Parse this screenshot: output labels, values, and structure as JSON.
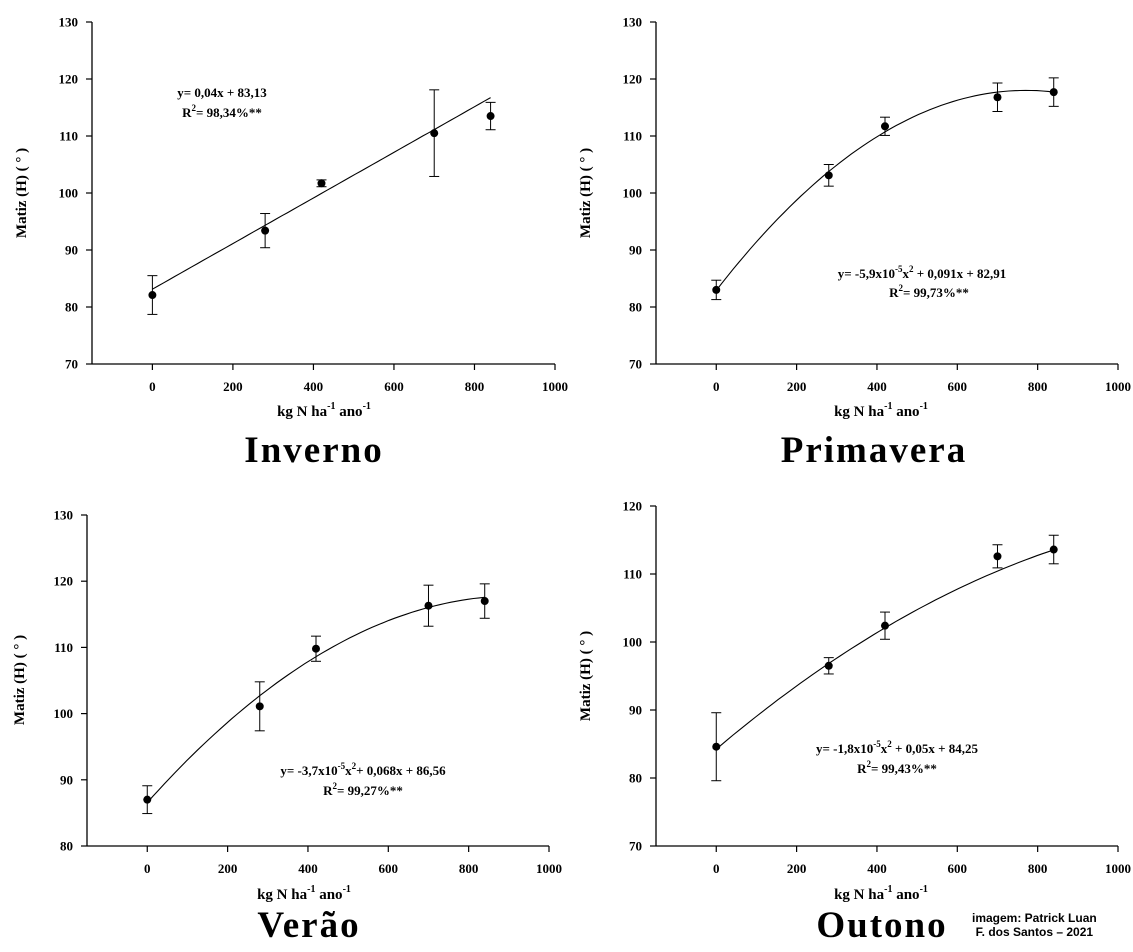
{
  "chart_data": [
    {
      "type": "scatter",
      "title": "Inverno",
      "xlabel": "kg N ha",
      "xlabel_sup1": "-1",
      "xlabel_mid": " ano",
      "xlabel_sup2": "-1",
      "ylabel": "Matiz (H) ( ° )",
      "xlim": [
        -150,
        1000
      ],
      "ylim": [
        70,
        130
      ],
      "xticks": [
        0,
        200,
        400,
        600,
        800,
        1000
      ],
      "yticks": [
        70,
        80,
        90,
        100,
        110,
        120,
        130
      ],
      "x": [
        0,
        280,
        420,
        700,
        840
      ],
      "y": [
        82.1,
        93.4,
        101.7,
        110.5,
        113.5
      ],
      "err": [
        3.4,
        3.0,
        0.6,
        7.6,
        2.4
      ],
      "fit": {
        "a": 0,
        "b": 0.04,
        "c": 83.13
      },
      "equation": "y= 0,04x + 83,13",
      "r2_label": "R",
      "r2_value": "= 98,34%**"
    },
    {
      "type": "scatter",
      "title": "Primavera",
      "xlabel": "kg N ha",
      "xlabel_sup1": "-1",
      "xlabel_mid": " ano",
      "xlabel_sup2": "-1",
      "ylabel": "Matiz (H) ( ° )",
      "xlim": [
        -150,
        1000
      ],
      "ylim": [
        70,
        130
      ],
      "xticks": [
        0,
        200,
        400,
        600,
        800,
        1000
      ],
      "yticks": [
        70,
        80,
        90,
        100,
        110,
        120,
        130
      ],
      "x": [
        0,
        280,
        420,
        700,
        840
      ],
      "y": [
        83.0,
        103.1,
        111.7,
        116.8,
        117.7
      ],
      "err": [
        1.7,
        1.9,
        1.6,
        2.5,
        2.5
      ],
      "fit": {
        "a": -5.9e-05,
        "b": 0.091,
        "c": 82.91
      },
      "equation_pre": "y= -5,9x10",
      "equation_sup": "-5",
      "equation_mid": "x",
      "equation_sup2": "2",
      "equation_post": " + 0,091x + 82,91",
      "r2_label": "R",
      "r2_value": "= 99,73%**"
    },
    {
      "type": "scatter",
      "title": "Verão",
      "xlabel": "kg N ha",
      "xlabel_sup1": "-1",
      "xlabel_mid": " ano",
      "xlabel_sup2": "-1",
      "ylabel": "Matiz (H) ( ° )",
      "xlim": [
        -150,
        1000
      ],
      "ylim": [
        80,
        130
      ],
      "xticks": [
        0,
        200,
        400,
        600,
        800,
        1000
      ],
      "yticks": [
        80,
        90,
        100,
        110,
        120,
        130
      ],
      "x": [
        0,
        280,
        420,
        700,
        840
      ],
      "y": [
        87.0,
        101.1,
        109.8,
        116.3,
        117.0
      ],
      "err": [
        2.1,
        3.7,
        1.9,
        3.1,
        2.6
      ],
      "fit": {
        "a": -3.7e-05,
        "b": 0.068,
        "c": 86.56
      },
      "equation_pre": "y= -3,7x10",
      "equation_sup": "-5",
      "equation_mid": "x",
      "equation_sup2": "2",
      "equation_post": "+ 0,068x + 86,56",
      "r2_label": "R",
      "r2_value": "= 99,27%**"
    },
    {
      "type": "scatter",
      "title": "Outono",
      "xlabel": "kg N ha",
      "xlabel_sup1": "-1",
      "xlabel_mid": " ano",
      "xlabel_sup2": "-1",
      "ylabel": "Matiz (H) ( ° )",
      "xlim": [
        -150,
        1000
      ],
      "ylim": [
        70,
        120
      ],
      "xticks": [
        0,
        200,
        400,
        600,
        800,
        1000
      ],
      "yticks": [
        70,
        80,
        90,
        100,
        110,
        120
      ],
      "x": [
        0,
        280,
        420,
        700,
        840
      ],
      "y": [
        84.6,
        96.5,
        102.4,
        112.6,
        113.6
      ],
      "err": [
        5.0,
        1.2,
        2.0,
        1.7,
        2.1
      ],
      "fit": {
        "a": -1.8e-05,
        "b": 0.05,
        "c": 84.25
      },
      "equation_pre": "y= -1,8x10",
      "equation_sup": "-5",
      "equation_mid": "x",
      "equation_sup2": "2",
      "equation_post": " + 0,05x + 84,25",
      "r2_label": "R",
      "r2_value": "= 99,43%**"
    }
  ],
  "credit": "imagem: Patrick Luan\nF. dos Santos – 2021"
}
